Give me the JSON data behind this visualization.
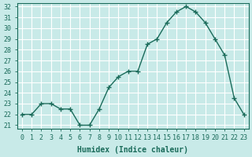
{
  "x": [
    0,
    1,
    2,
    3,
    4,
    5,
    6,
    7,
    8,
    9,
    10,
    11,
    12,
    13,
    14,
    15,
    16,
    17,
    18,
    19,
    20,
    21,
    22,
    23
  ],
  "y": [
    22,
    22,
    23,
    23,
    22.5,
    22.5,
    21,
    21,
    22.5,
    24.5,
    25.5,
    26,
    26,
    28.5,
    29,
    30.5,
    31.5,
    32,
    31.5,
    30.5,
    29,
    27.5,
    23.5,
    22
  ],
  "line_color": "#1a6b5a",
  "marker": "+",
  "marker_size": 5,
  "background_color": "#c8eae8",
  "grid_color": "#ffffff",
  "xlabel": "Humidex (Indice chaleur)",
  "ylim": [
    21,
    32
  ],
  "xlim": [
    -0.5,
    23.5
  ],
  "yticks": [
    21,
    22,
    23,
    24,
    25,
    26,
    27,
    28,
    29,
    30,
    31,
    32
  ],
  "xticks": [
    0,
    1,
    2,
    3,
    4,
    5,
    6,
    7,
    8,
    9,
    10,
    11,
    12,
    13,
    14,
    15,
    16,
    17,
    18,
    19,
    20,
    21,
    22,
    23
  ],
  "xtick_labels": [
    "0",
    "1",
    "2",
    "3",
    "4",
    "5",
    "6",
    "7",
    "8",
    "9",
    "10",
    "11",
    "12",
    "13",
    "14",
    "15",
    "16",
    "17",
    "18",
    "19",
    "20",
    "21",
    "22",
    "23"
  ],
  "tick_color": "#1a6b5a",
  "label_fontsize": 7,
  "tick_fontsize": 6
}
